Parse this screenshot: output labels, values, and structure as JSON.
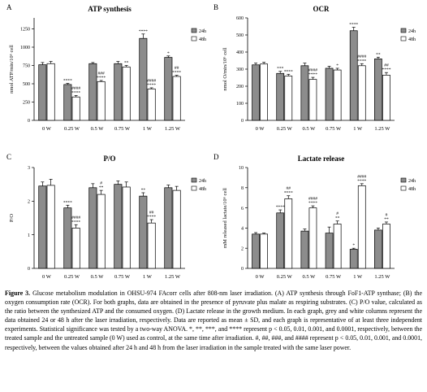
{
  "figure": {
    "caption_label": "Figure 3.",
    "caption_text": " Glucose metabolism modulation in OHSU-974 FAcorr cells after 808-nm laser irradiation. (A) ATP synthesis through FoF1-ATP synthase; (B) the oxygen consumption rate (OCR). For both graphs, data are obtained in the presence of pyruvate plus malate as respiring substrates. (C) P/O value, calculated as the ratio between the synthesized ATP and the consumed oxygen. (D) Lactate release in the growth medium. In each graph, grey and white columns represent the data obtained 24 or 48 h after the laser irradiation, respectively. Data are reported as mean ± SD, and each graph is representative of at least three independent experiments. Statistical significance was tested by a two-way ANOVA. *, **, ***, and **** represent p < 0.05, 0.01, 0.001, and 0.0001, respectively, between the treated sample and the untreated sample (0 W) used as control, at the same time after irradiation. #, ##, ###, and #### represent p < 0.05, 0.01, 0.001, and 0.0001, respectively, between the values obtained after 24 h and 48 h from the laser irradiation in the sample treated with the same laser power."
  },
  "colors": {
    "bar_24h": "#8c8c8c",
    "bar_48h": "#ffffff",
    "stroke": "#000000"
  },
  "chart_data": [
    {
      "panel": "A",
      "type": "bar",
      "title": "ATP synthesis",
      "ylabel": "nmol ATP/min/10⁶ cell",
      "xlabel": "",
      "ylim": [
        0,
        1400
      ],
      "yticks": [
        0,
        250,
        500,
        750,
        1000,
        1250
      ],
      "categories": [
        "0 W",
        "0.25 W",
        "0.5 W",
        "0.75 W",
        "1 W",
        "1.25 W"
      ],
      "legend": {
        "position": "top-right"
      },
      "series": [
        {
          "name": "24h",
          "values": [
            760,
            490,
            775,
            775,
            1120,
            860
          ],
          "errors": [
            30,
            15,
            15,
            30,
            60,
            20
          ],
          "annotations": [
            "",
            "****",
            "",
            "",
            "****",
            "*"
          ]
        },
        {
          "name": "48h",
          "values": [
            775,
            320,
            530,
            730,
            430,
            600
          ],
          "errors": [
            30,
            20,
            15,
            20,
            15,
            15
          ],
          "annotations": [
            "",
            "####\n****",
            "###\n****",
            "**",
            "####\n****",
            "##\n****"
          ]
        }
      ]
    },
    {
      "panel": "B",
      "type": "bar",
      "title": "OCR",
      "ylabel": "nmol O/min/10⁶ cell",
      "xlabel": "",
      "ylim": [
        0,
        600
      ],
      "yticks": [
        0,
        100,
        200,
        300,
        400,
        500,
        600
      ],
      "categories": [
        "0 W",
        "0.25 W",
        "0.5 W",
        "0.75 W",
        "1 W",
        "1.25 W"
      ],
      "legend": {
        "position": "top-right"
      },
      "series": [
        {
          "name": "24h",
          "values": [
            325,
            275,
            320,
            305,
            525,
            360
          ],
          "errors": [
            10,
            12,
            15,
            12,
            20,
            10
          ],
          "annotations": [
            "",
            "***",
            "",
            "",
            "****",
            "**"
          ]
        },
        {
          "name": "48h",
          "values": [
            330,
            260,
            240,
            295,
            320,
            265
          ],
          "errors": [
            10,
            10,
            12,
            10,
            12,
            15
          ],
          "annotations": [
            "",
            "****",
            "####\n****",
            "*",
            "####\n****",
            "##\n****"
          ]
        }
      ]
    },
    {
      "panel": "C",
      "type": "bar",
      "title": "P/O",
      "ylabel": "P/O",
      "xlabel": "",
      "ylim": [
        0,
        3
      ],
      "yticks": [
        0,
        1,
        2,
        3
      ],
      "categories": [
        "0 W",
        "0.25 W",
        "0.5 W",
        "0.75 W",
        "1 W",
        "1.25 W"
      ],
      "legend": {
        "position": "top-right"
      },
      "series": [
        {
          "name": "24h",
          "values": [
            2.45,
            1.8,
            2.4,
            2.5,
            2.15,
            2.4
          ],
          "errors": [
            0.12,
            0.08,
            0.12,
            0.1,
            0.1,
            0.08
          ],
          "annotations": [
            "",
            "****",
            "",
            "",
            "**",
            ""
          ]
        },
        {
          "name": "48h",
          "values": [
            2.47,
            1.2,
            2.2,
            2.42,
            1.35,
            2.32
          ],
          "errors": [
            0.18,
            0.1,
            0.12,
            0.15,
            0.1,
            0.12
          ],
          "annotations": [
            "",
            "####\n****",
            "#\n**",
            "",
            "##\n****",
            ""
          ]
        }
      ]
    },
    {
      "panel": "D",
      "type": "bar",
      "title": "Lactate release",
      "ylabel": "mM released lactate/10⁶ cell",
      "xlabel": "",
      "ylim": [
        0,
        10
      ],
      "yticks": [
        0,
        2,
        4,
        6,
        8,
        10
      ],
      "categories": [
        "0 W",
        "0.25 W",
        "0.5 W",
        "0.75 W",
        "1 W",
        "1.25 W"
      ],
      "legend": {
        "position": "top-right"
      },
      "series": [
        {
          "name": "24h",
          "values": [
            3.4,
            5.5,
            3.7,
            3.5,
            1.9,
            3.8
          ],
          "errors": [
            0.15,
            0.3,
            0.2,
            0.6,
            0.1,
            0.2
          ],
          "annotations": [
            "",
            "****",
            "",
            "",
            "*",
            ""
          ]
        },
        {
          "name": "48h",
          "values": [
            3.4,
            6.9,
            6.0,
            4.4,
            8.2,
            4.4
          ],
          "errors": [
            0.1,
            0.3,
            0.2,
            0.3,
            0.2,
            0.2
          ],
          "annotations": [
            "",
            "##\n****",
            "####\n****",
            "#\n**",
            "####\n****",
            "#\n**"
          ]
        }
      ]
    }
  ]
}
